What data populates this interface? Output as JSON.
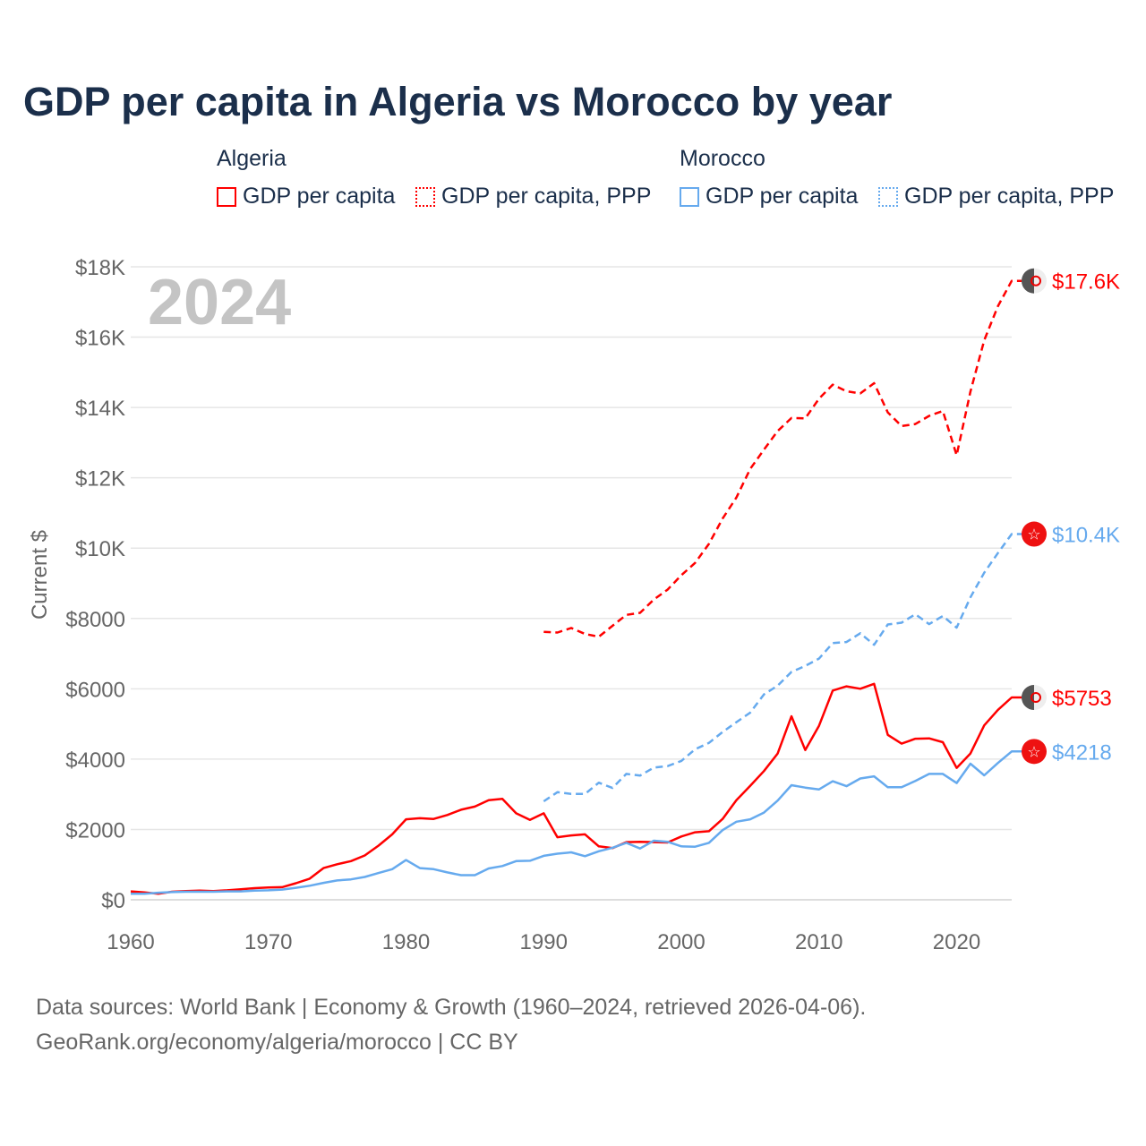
{
  "title": "GDP per capita in Algeria vs Morocco by year",
  "legend": {
    "groups": [
      {
        "name": "Algeria",
        "items": [
          "GDP per capita",
          "GDP per capita, PPP"
        ]
      },
      {
        "name": "Morocco",
        "items": [
          "GDP per capita",
          "GDP per capita, PPP"
        ]
      }
    ]
  },
  "colors": {
    "algeria": "#ff0000",
    "morocco": "#66aaee",
    "grid": "#e6e6e6",
    "axis_text": "#666666",
    "year_watermark": "#c4c4c4"
  },
  "year_watermark": "2024",
  "source": {
    "line1": "Data sources: World Bank | Economy & Growth (1960–2024, retrieved 2026-04-06).",
    "line2": "GeoRank.org/economy/algeria/morocco | CC BY"
  },
  "chart_data": {
    "type": "line",
    "title": "GDP per capita in Algeria vs Morocco by year",
    "xlabel": "",
    "ylabel": "Current $",
    "xlim": [
      1960,
      2024
    ],
    "ylim": [
      0,
      18000
    ],
    "grid": true,
    "legend_placement": "top",
    "x_ticks": [
      1960,
      1970,
      1980,
      1990,
      2000,
      2010,
      2020
    ],
    "x_tick_labels": [
      "1960",
      "1970",
      "1980",
      "1990",
      "2000",
      "2010",
      "2020"
    ],
    "y_ticks": [
      0,
      2000,
      4000,
      6000,
      8000,
      10000,
      12000,
      14000,
      16000,
      18000
    ],
    "y_tick_labels": [
      "$0",
      "$2000",
      "$4000",
      "$6000",
      "$8000",
      "$10K",
      "$12K",
      "$14K",
      "$16K",
      "$18K"
    ],
    "series": [
      {
        "name": "Algeria GDP per capita",
        "country": "algeria",
        "dashed": false,
        "start_year": 1960,
        "end_label": "$5753",
        "values": [
          240,
          210,
          170,
          230,
          250,
          260,
          250,
          270,
          300,
          330,
          350,
          360,
          470,
          600,
          900,
          1010,
          1100,
          1260,
          1540,
          1860,
          2290,
          2320,
          2300,
          2410,
          2560,
          2650,
          2830,
          2870,
          2460,
          2270,
          2460,
          1780,
          1830,
          1860,
          1520,
          1470,
          1640,
          1650,
          1640,
          1630,
          1800,
          1920,
          1950,
          2300,
          2830,
          3240,
          3660,
          4160,
          5220,
          4260,
          4950,
          5950,
          6070,
          6000,
          6140,
          4690,
          4440,
          4580,
          4590,
          4480,
          3750,
          4160,
          4960,
          5400,
          5753
        ]
      },
      {
        "name": "Algeria GDP per capita, PPP",
        "country": "algeria",
        "dashed": true,
        "start_year": 1990,
        "end_label": "$17.6K",
        "values": [
          7620,
          7600,
          7730,
          7560,
          7480,
          7790,
          8100,
          8160,
          8540,
          8820,
          9230,
          9580,
          10120,
          10840,
          11440,
          12250,
          12800,
          13330,
          13700,
          13690,
          14250,
          14650,
          14460,
          14400,
          14690,
          13860,
          13470,
          13530,
          13760,
          13900,
          12640,
          14450,
          15910,
          16880,
          17600
        ]
      },
      {
        "name": "Morocco GDP per capita",
        "country": "morocco",
        "dashed": false,
        "start_year": 1960,
        "end_label": "$4218",
        "values": [
          170,
          170,
          200,
          220,
          230,
          230,
          230,
          240,
          240,
          260,
          270,
          290,
          340,
          400,
          480,
          550,
          580,
          650,
          760,
          870,
          1130,
          900,
          870,
          780,
          700,
          700,
          890,
          960,
          1100,
          1110,
          1250,
          1310,
          1350,
          1240,
          1380,
          1480,
          1620,
          1460,
          1680,
          1650,
          1520,
          1510,
          1620,
          1980,
          2220,
          2290,
          2480,
          2820,
          3260,
          3190,
          3140,
          3370,
          3230,
          3450,
          3510,
          3200,
          3200,
          3380,
          3580,
          3580,
          3320,
          3870,
          3540,
          3890,
          4218
        ]
      },
      {
        "name": "Morocco GDP per capita, PPP",
        "country": "morocco",
        "dashed": true,
        "start_year": 1990,
        "end_label": "$10.4K",
        "values": [
          2800,
          3060,
          3010,
          3010,
          3330,
          3180,
          3580,
          3530,
          3760,
          3800,
          3950,
          4280,
          4460,
          4770,
          5050,
          5320,
          5840,
          6090,
          6480,
          6650,
          6860,
          7300,
          7330,
          7580,
          7250,
          7830,
          7880,
          8120,
          7840,
          8070,
          7740,
          8600,
          9300,
          9860,
          10400
        ]
      }
    ]
  }
}
